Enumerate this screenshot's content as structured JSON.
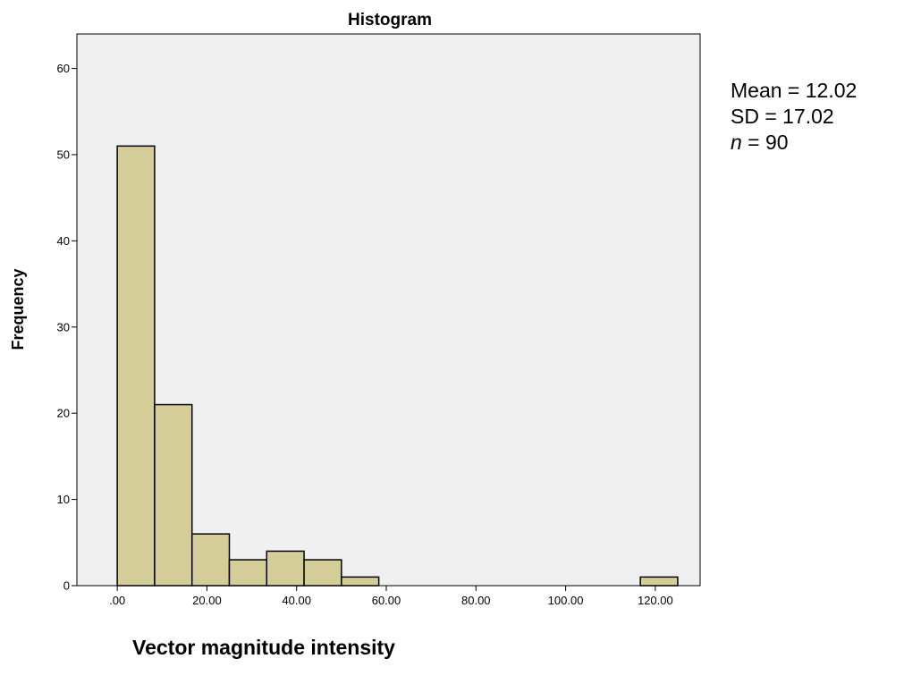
{
  "chart_data": {
    "type": "bar",
    "title": "Histogram",
    "ylabel": "Frequency",
    "xlabel": "Vector magnitude intensity",
    "xlim": [
      -9,
      130
    ],
    "ylim": [
      0,
      64
    ],
    "x_ticks": [
      0,
      20,
      40,
      60,
      80,
      100,
      120
    ],
    "x_tick_labels": [
      ".00",
      "20.00",
      "40.00",
      "60.00",
      "80.00",
      "100.00",
      "120.00"
    ],
    "y_ticks": [
      0,
      10,
      20,
      30,
      40,
      50,
      60
    ],
    "y_tick_labels": [
      "0",
      "10",
      "20",
      "30",
      "40",
      "50",
      "60"
    ],
    "bins": [
      {
        "start": 0.0,
        "end": 8.33,
        "count": 51
      },
      {
        "start": 8.33,
        "end": 16.67,
        "count": 21
      },
      {
        "start": 16.67,
        "end": 25.0,
        "count": 6
      },
      {
        "start": 25.0,
        "end": 33.33,
        "count": 3
      },
      {
        "start": 33.33,
        "end": 41.67,
        "count": 4
      },
      {
        "start": 41.67,
        "end": 50.0,
        "count": 3
      },
      {
        "start": 50.0,
        "end": 58.33,
        "count": 1
      },
      {
        "start": 116.67,
        "end": 125.0,
        "count": 1
      }
    ],
    "grid": false,
    "colors": {
      "bar_fill": "#d4cd98",
      "bar_stroke": "#000000",
      "plot_bg": "#f0f0f0"
    }
  },
  "stats": {
    "mean_label": "Mean = 12.02",
    "sd_label": "SD = 17.02",
    "n_symbol": "n",
    "n_rest": " = 90"
  }
}
